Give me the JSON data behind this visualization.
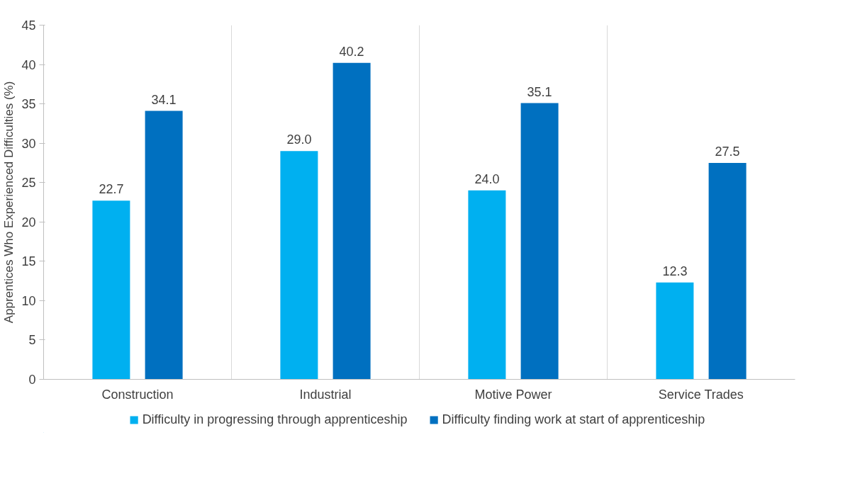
{
  "chart_data": {
    "type": "bar",
    "ylabel": "Apprentices Who Experienced Difficulties (%)",
    "categories": [
      "Construction",
      "Industrial",
      "Motive Power",
      "Service Trades"
    ],
    "series": [
      {
        "name": "Difficulty in progressing through apprenticeship",
        "color": "#00b0f0",
        "values": [
          22.7,
          29.0,
          24.0,
          12.3
        ],
        "value_labels": [
          "22.7",
          "29.0",
          "24.0",
          "12.3"
        ]
      },
      {
        "name": "Difficulty finding work at start of apprenticeship",
        "color": "#0070c0",
        "values": [
          34.1,
          40.2,
          35.1,
          27.5
        ],
        "value_labels": [
          "34.1",
          "40.2",
          "35.1",
          "27.5"
        ]
      }
    ],
    "ylim": [
      0,
      45
    ],
    "yticks": [
      0,
      5,
      10,
      15,
      20,
      25,
      30,
      35,
      40,
      45
    ],
    "grid": "x",
    "legend": "bottom"
  }
}
